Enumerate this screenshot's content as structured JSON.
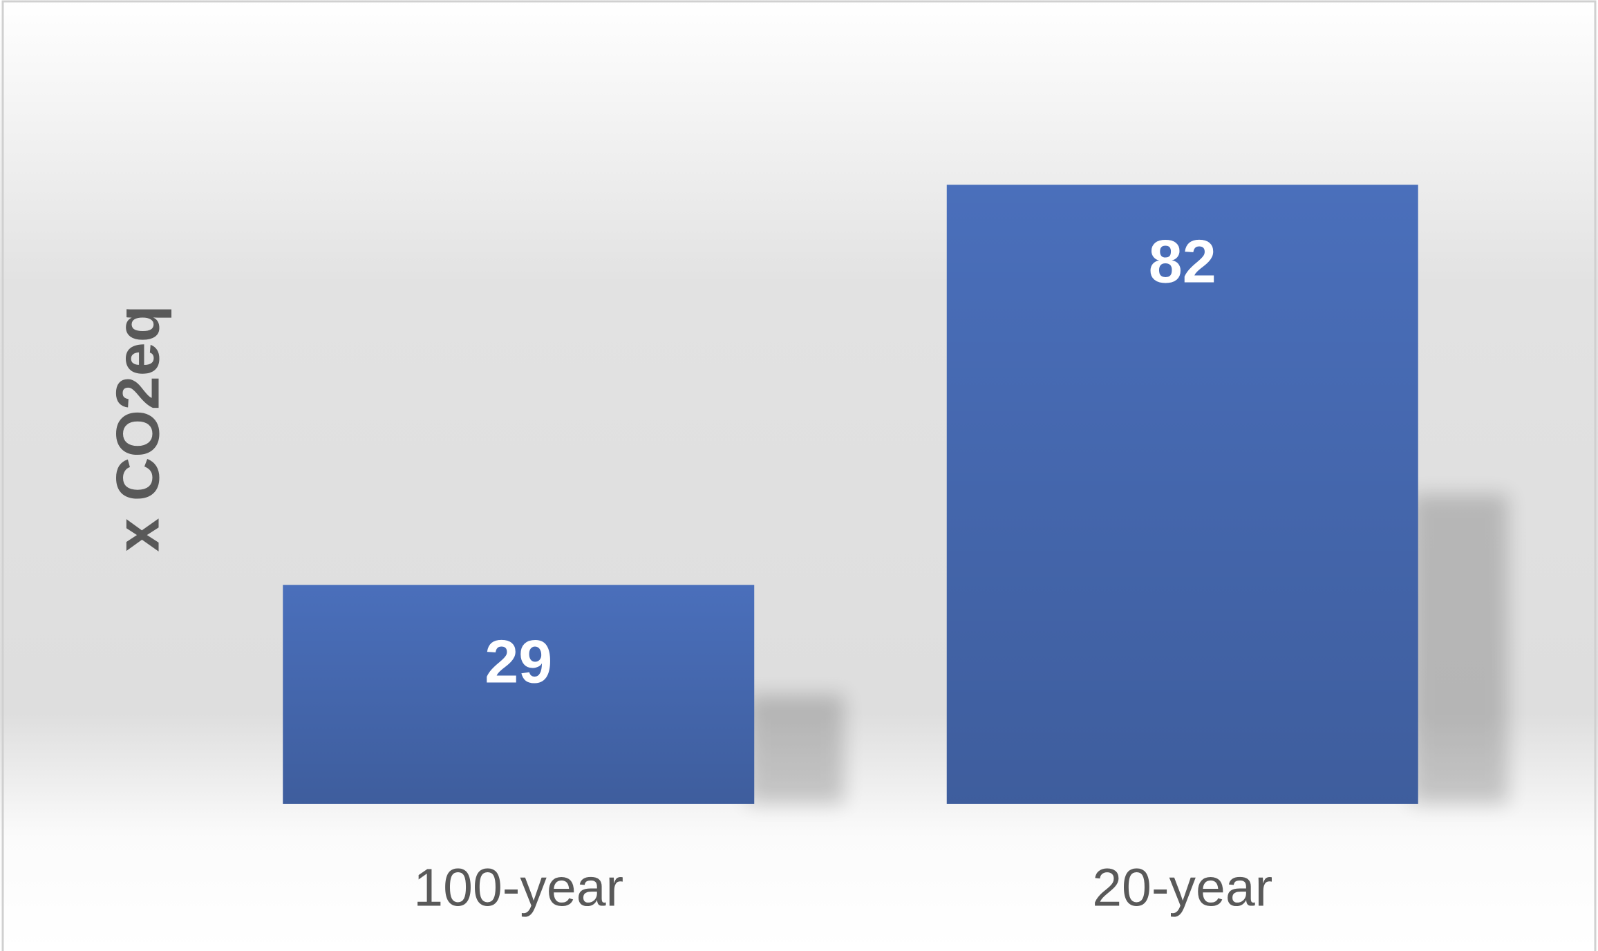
{
  "chart_data": {
    "type": "bar",
    "y_label": "x CO2eq",
    "categories": [
      "100-year",
      "20-year"
    ],
    "values": [
      29,
      82
    ],
    "color": "#4a6fbb",
    "ylim": [
      0,
      90
    ]
  }
}
